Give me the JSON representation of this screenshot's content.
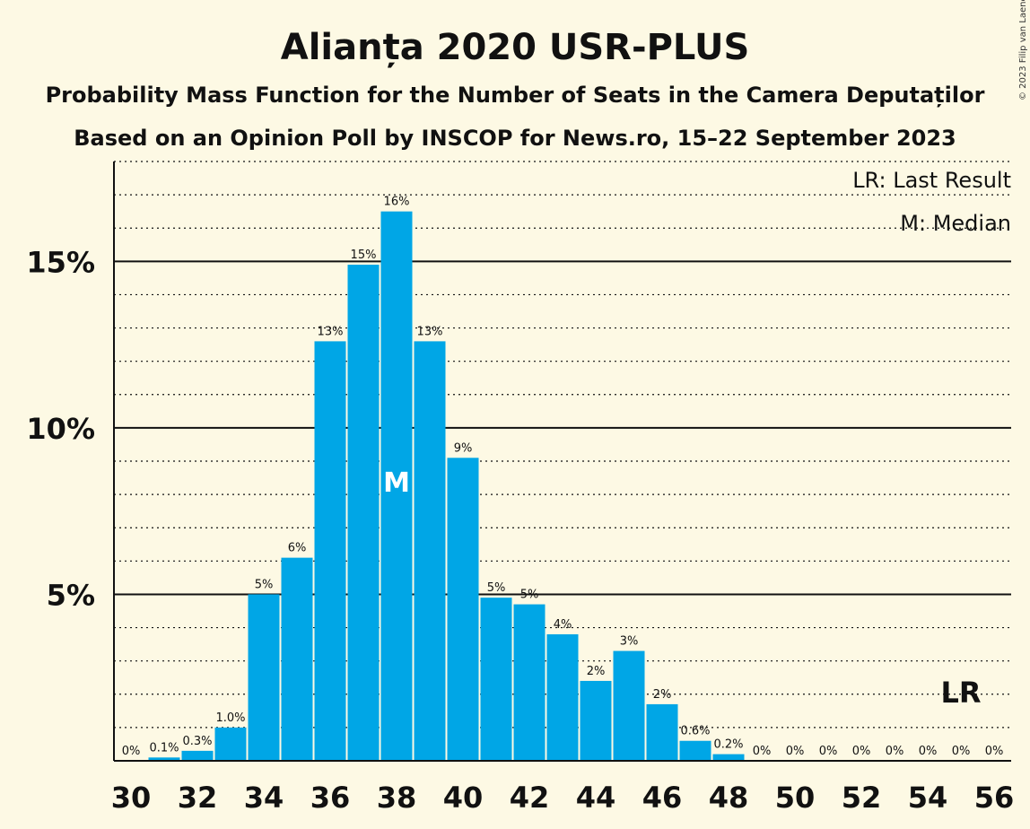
{
  "chart_data": {
    "type": "bar",
    "title": "Alianța 2020 USR-PLUS",
    "subtitle1": "Probability Mass Function for the Number of Seats in the Camera Deputaților",
    "subtitle2": "Based on an Opinion Poll by INSCOP for News.ro, 15–22 September 2023",
    "copyright": "© 2023 Filip van Laenen",
    "legend": {
      "lr": "LR: Last Result",
      "m": "M: Median",
      "position": "top-right"
    },
    "x": [
      30,
      31,
      32,
      33,
      34,
      35,
      36,
      37,
      38,
      39,
      40,
      41,
      42,
      43,
      44,
      45,
      46,
      47,
      48,
      49,
      50,
      51,
      52,
      53,
      54,
      55,
      56
    ],
    "values": [
      0,
      0.1,
      0.3,
      1.0,
      5.0,
      6.1,
      12.6,
      14.9,
      16.5,
      12.6,
      9.1,
      4.9,
      4.7,
      3.8,
      2.4,
      3.3,
      1.7,
      0.6,
      0.2,
      0,
      0,
      0,
      0,
      0,
      0,
      0,
      0
    ],
    "labels": [
      "0%",
      "0.1%",
      "0.3%",
      "1.0%",
      "5%",
      "6%",
      "13%",
      "15%",
      "16%",
      "13%",
      "9%",
      "5%",
      "5%",
      "4%",
      "2%",
      "3%",
      "2%",
      "0.6%",
      "0.2%",
      "0%",
      "0%",
      "0%",
      "0%",
      "0%",
      "0%",
      "0%",
      "0%"
    ],
    "x_ticks": [
      "30",
      "32",
      "34",
      "36",
      "38",
      "40",
      "42",
      "44",
      "46",
      "48",
      "50",
      "52",
      "54",
      "56"
    ],
    "y_ticks": [
      {
        "value": 5,
        "label": "5%"
      },
      {
        "value": 10,
        "label": "10%"
      },
      {
        "value": 15,
        "label": "15%"
      }
    ],
    "ylim": [
      0,
      18
    ],
    "median": {
      "x": 38,
      "label": "M"
    },
    "last_result": {
      "x": 55,
      "label": "LR"
    },
    "colors": {
      "bar": "#00a6e6",
      "background": "#fdf9e4"
    },
    "grid": true
  }
}
